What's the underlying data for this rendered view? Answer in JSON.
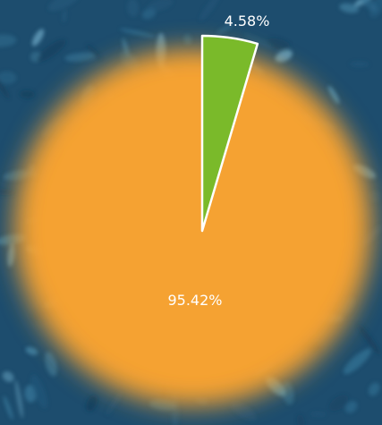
{
  "chart_data": {
    "type": "pie",
    "title": "",
    "slices": [
      {
        "label": "95.42%",
        "value": 95.42,
        "color": "#f5a233"
      },
      {
        "label": "4.58%",
        "value": 4.58,
        "color": "#7aba2a"
      }
    ],
    "background_color": "#1d4d6e",
    "slice_stroke_color": "#ffffff"
  }
}
